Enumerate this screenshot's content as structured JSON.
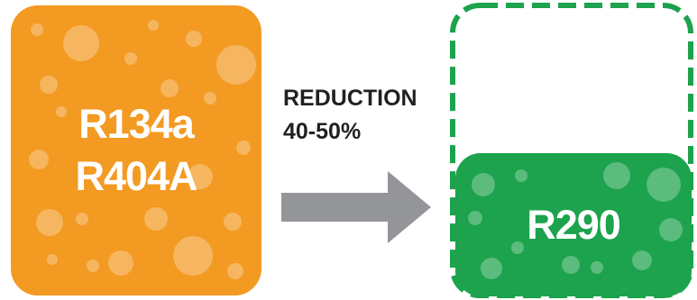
{
  "left_box": {
    "line1": "R134a",
    "line2": "R404A",
    "color": "#f39a22"
  },
  "change": {
    "line1": "REDUCTION",
    "line2": "40-50%",
    "arrow_color": "#949598"
  },
  "right_box": {
    "label": "R290",
    "color": "#1da24d",
    "outline": "dashed",
    "fill_level": 0.5
  }
}
